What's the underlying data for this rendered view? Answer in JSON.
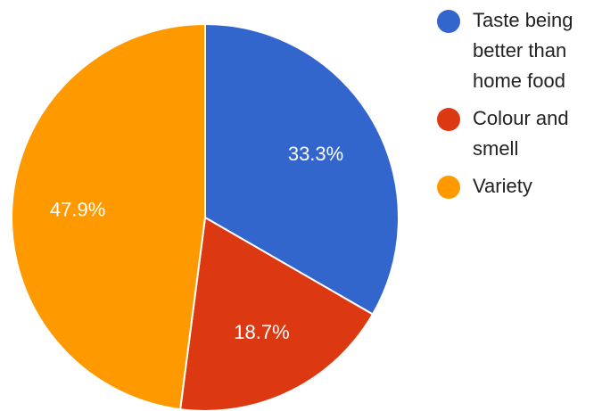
{
  "chart_data": {
    "type": "pie",
    "title": "",
    "slices": [
      {
        "label": "Taste being better than home food",
        "value": 33.3,
        "display": "33.3%",
        "color": "#3366cc"
      },
      {
        "label": "Colour and smell",
        "value": 18.7,
        "display": "18.7%",
        "color": "#dc3912"
      },
      {
        "label": "Variety",
        "value": 47.9,
        "display": "47.9%",
        "color": "#ff9900"
      }
    ],
    "start_angle_deg": 90,
    "direction": "clockwise",
    "legend": {
      "placement": "right",
      "lines": [
        [
          "Taste being",
          "better than",
          "home food"
        ],
        [
          "Colour and",
          "smell"
        ],
        [
          "Variety"
        ]
      ]
    }
  }
}
